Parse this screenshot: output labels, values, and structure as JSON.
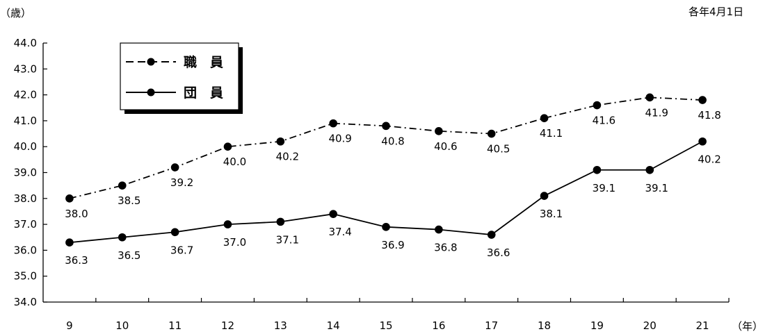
{
  "chart_data": {
    "type": "line",
    "y_unit_label": "（歳）",
    "x_unit_label": "（年）",
    "note": "各年4月1日",
    "categories": [
      "9",
      "10",
      "11",
      "12",
      "13",
      "14",
      "15",
      "16",
      "17",
      "18",
      "19",
      "20",
      "21"
    ],
    "ylim": [
      34.0,
      44.0
    ],
    "y_ticks": [
      "34.0",
      "35.0",
      "36.0",
      "37.0",
      "38.0",
      "39.0",
      "40.0",
      "41.0",
      "42.0",
      "43.0",
      "44.0"
    ],
    "grid": false,
    "legend_position": "top-left",
    "series": [
      {
        "name": "職　員",
        "line_style": "dash-dot",
        "values": [
          38.0,
          38.5,
          39.2,
          40.0,
          40.2,
          40.9,
          40.8,
          40.6,
          40.5,
          41.1,
          41.6,
          41.9,
          41.8
        ],
        "labels": [
          "38.0",
          "38.5",
          "39.2",
          "40.0",
          "40.2",
          "40.9",
          "40.8",
          "40.6",
          "40.5",
          "41.1",
          "41.6",
          "41.9",
          "41.8"
        ]
      },
      {
        "name": "団　員",
        "line_style": "solid",
        "values": [
          36.3,
          36.5,
          36.7,
          37.0,
          37.1,
          37.4,
          36.9,
          36.8,
          36.6,
          38.1,
          39.1,
          39.1,
          40.2
        ],
        "labels": [
          "36.3",
          "36.5",
          "36.7",
          "37.0",
          "37.1",
          "37.4",
          "36.9",
          "36.8",
          "36.6",
          "38.1",
          "39.1",
          "39.1",
          "40.2"
        ]
      }
    ]
  }
}
